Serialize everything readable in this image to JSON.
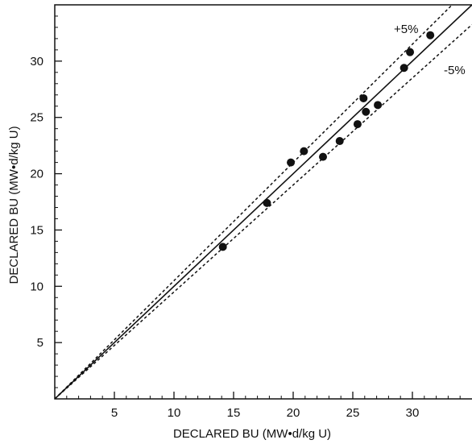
{
  "chart_data": {
    "type": "scatter",
    "title": "",
    "xlabel": "DECLARED BU (MW•d/kg U)",
    "ylabel": "DECLARED BU (MW•d/kg U)",
    "xlim": [
      0,
      35
    ],
    "ylim": [
      0,
      35
    ],
    "xticks": [
      5,
      10,
      15,
      20,
      25,
      30
    ],
    "yticks": [
      5,
      10,
      15,
      20,
      25,
      30
    ],
    "grid": false,
    "legend": "none",
    "series": [
      {
        "points": [
          {
            "x": 14.1,
            "y": 13.5
          },
          {
            "x": 17.8,
            "y": 17.4
          },
          {
            "x": 19.8,
            "y": 21.0
          },
          {
            "x": 20.9,
            "y": 22.0
          },
          {
            "x": 22.5,
            "y": 21.5
          },
          {
            "x": 23.9,
            "y": 22.9
          },
          {
            "x": 25.4,
            "y": 24.4
          },
          {
            "x": 25.9,
            "y": 26.7
          },
          {
            "x": 26.1,
            "y": 25.5
          },
          {
            "x": 27.1,
            "y": 26.1
          },
          {
            "x": 29.3,
            "y": 29.4
          },
          {
            "x": 29.8,
            "y": 30.8
          },
          {
            "x": 31.5,
            "y": 32.3
          }
        ]
      }
    ],
    "reference_lines": [
      {
        "slope": 1.0,
        "style": "solid"
      },
      {
        "slope": 1.05,
        "style": "dotted",
        "label": "+5%"
      },
      {
        "slope": 0.95,
        "style": "dotted",
        "label": "-5%"
      }
    ],
    "annotations": {
      "plus": "+5%",
      "minus": "-5%"
    }
  }
}
